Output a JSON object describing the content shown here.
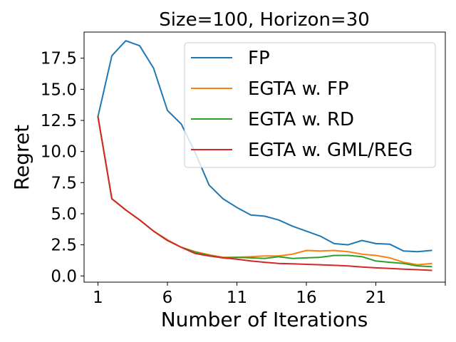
{
  "chart_data": {
    "type": "line",
    "title": "Size=100, Horizon=30",
    "xlabel": "Number of Iterations",
    "ylabel": "Regret",
    "xlim": [
      0.0,
      26.0
    ],
    "ylim": [
      -0.5,
      19.6
    ],
    "xticks": [
      1,
      6,
      11,
      16,
      21
    ],
    "xtick_labels": [
      "1",
      "6",
      "11",
      "16",
      "21"
    ],
    "yticks": [
      0.0,
      2.5,
      5.0,
      7.5,
      10.0,
      12.5,
      15.0,
      17.5
    ],
    "ytick_labels": [
      "0.0",
      "2.5",
      "5.0",
      "7.5",
      "10.0",
      "12.5",
      "15.0",
      "17.5"
    ],
    "x": [
      1,
      2,
      3,
      4,
      5,
      6,
      7,
      8,
      9,
      10,
      11,
      12,
      13,
      14,
      15,
      16,
      17,
      18,
      19,
      20,
      21,
      22,
      23,
      24,
      25
    ],
    "legend_position": "top-right",
    "series": [
      {
        "name": "FP",
        "color": "#1f77b4",
        "values": [
          12.8,
          17.7,
          18.9,
          18.5,
          16.7,
          13.3,
          12.2,
          9.9,
          7.3,
          6.2,
          5.5,
          4.9,
          4.8,
          4.5,
          4.0,
          3.6,
          3.2,
          2.6,
          2.5,
          2.85,
          2.6,
          2.55,
          2.0,
          1.95,
          2.05
        ]
      },
      {
        "name": "EGTA w. FP",
        "color": "#ff7f0e",
        "values": [
          12.8,
          6.2,
          5.3,
          4.5,
          3.6,
          2.9,
          2.3,
          1.95,
          1.7,
          1.5,
          1.5,
          1.55,
          1.6,
          1.6,
          1.75,
          2.05,
          2.0,
          2.05,
          1.95,
          1.75,
          1.65,
          1.45,
          1.1,
          0.9,
          1.0
        ]
      },
      {
        "name": "EGTA w. RD",
        "color": "#2ca02c",
        "values": [
          12.8,
          6.2,
          5.3,
          4.5,
          3.6,
          2.85,
          2.3,
          1.9,
          1.65,
          1.45,
          1.5,
          1.45,
          1.4,
          1.55,
          1.4,
          1.45,
          1.5,
          1.65,
          1.65,
          1.55,
          1.2,
          1.1,
          1.0,
          0.8,
          0.75
        ]
      },
      {
        "name": "EGTA w. GML/REG",
        "color": "#d62728",
        "values": [
          12.8,
          6.2,
          5.3,
          4.5,
          3.6,
          2.85,
          2.3,
          1.8,
          1.6,
          1.45,
          1.35,
          1.2,
          1.1,
          1.0,
          0.97,
          0.93,
          0.9,
          0.85,
          0.8,
          0.72,
          0.65,
          0.6,
          0.55,
          0.5,
          0.45
        ]
      }
    ]
  }
}
